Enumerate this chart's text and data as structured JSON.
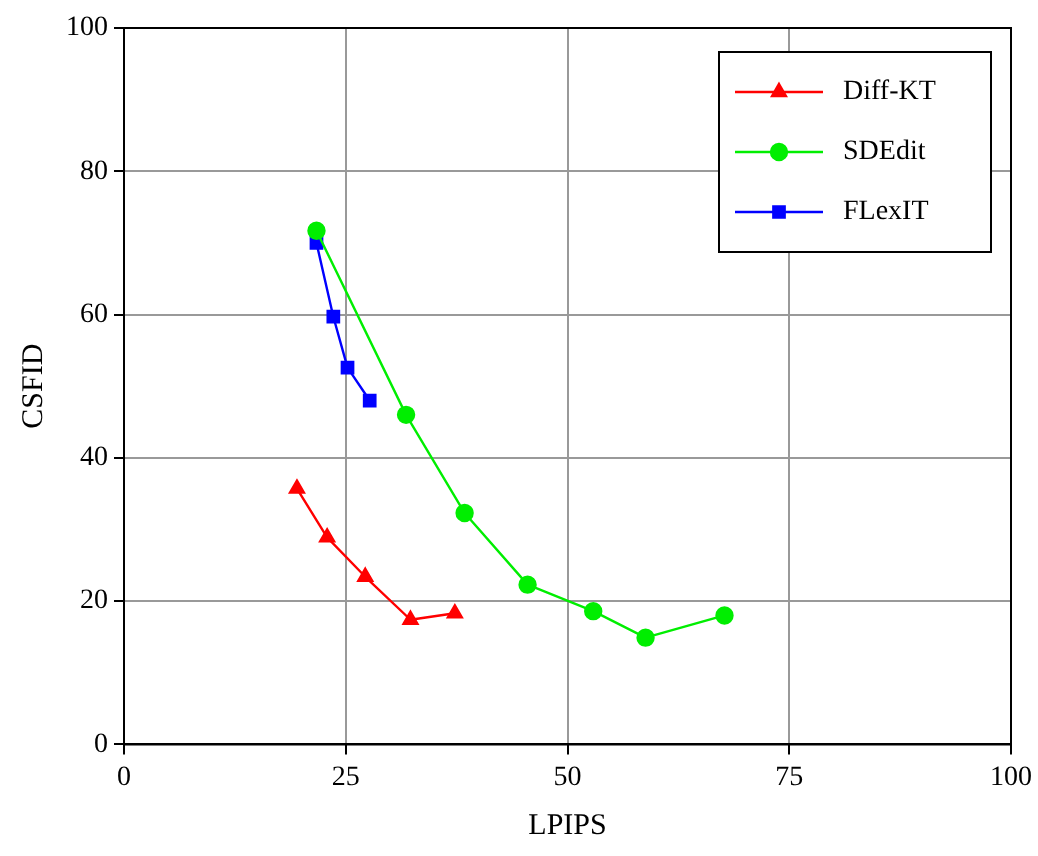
{
  "chart_data": {
    "type": "line",
    "xlabel": "LPIPS",
    "ylabel": "CSFID",
    "xlim": [
      0,
      100
    ],
    "ylim": [
      0,
      100
    ],
    "xticks": [
      0,
      25,
      50,
      75,
      100
    ],
    "yticks": [
      0,
      20,
      40,
      60,
      80,
      100
    ],
    "grid": true,
    "legend": "top right",
    "line_style": "solid",
    "series": [
      {
        "name": "Diff-KT",
        "color": "#ff0000",
        "marker": "triangle",
        "x": [
          19.5,
          22.9,
          27.2,
          32.3,
          37.3
        ],
        "values": [
          35.7,
          28.9,
          23.4,
          17.4,
          18.3
        ]
      },
      {
        "name": "SDEdit",
        "color": "#00ee00",
        "marker": "circle",
        "x": [
          21.7,
          31.8,
          38.4,
          45.5,
          52.9,
          58.8,
          67.7
        ],
        "values": [
          71.7,
          46,
          32.3,
          22.3,
          18.6,
          14.9,
          18
        ]
      },
      {
        "name": "FLexIT",
        "color": "#0000ff",
        "marker": "square",
        "x": [
          21.7,
          23.6,
          25.2,
          27.7
        ],
        "values": [
          70,
          59.7,
          52.6,
          48
        ]
      }
    ]
  }
}
